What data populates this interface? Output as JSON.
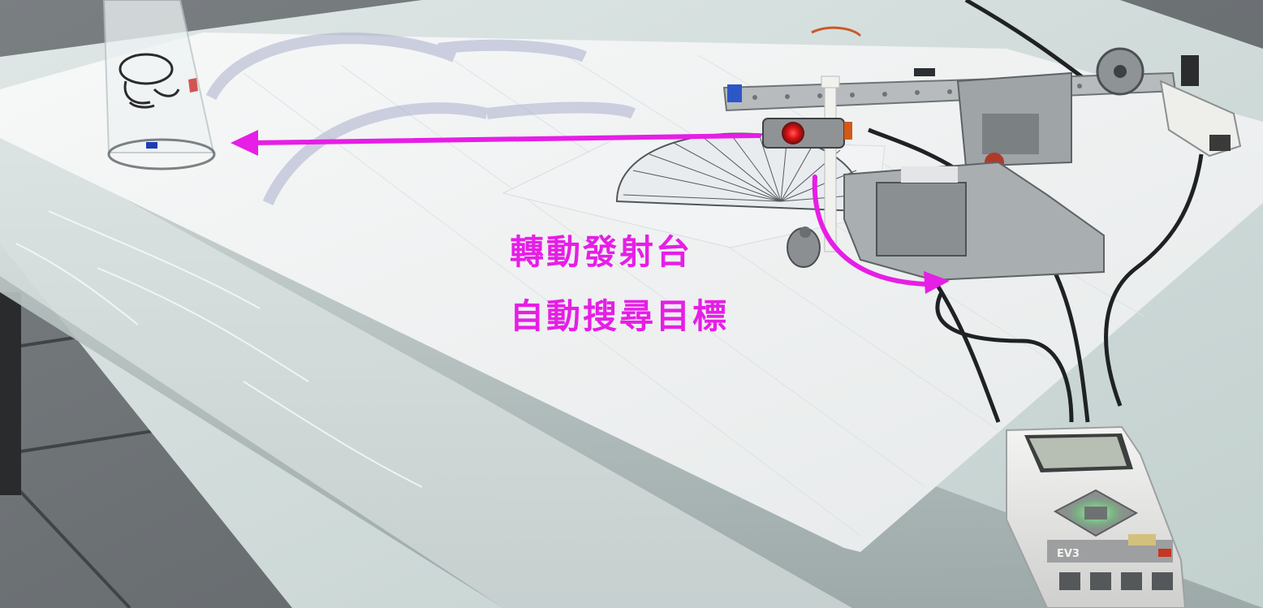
{
  "annotation": {
    "lines": [
      "轉動發射台",
      "自動搜尋目標"
    ],
    "color": "#e61ee6"
  },
  "brick": {
    "label": "EV3",
    "status_light_color": "#38e04a"
  }
}
